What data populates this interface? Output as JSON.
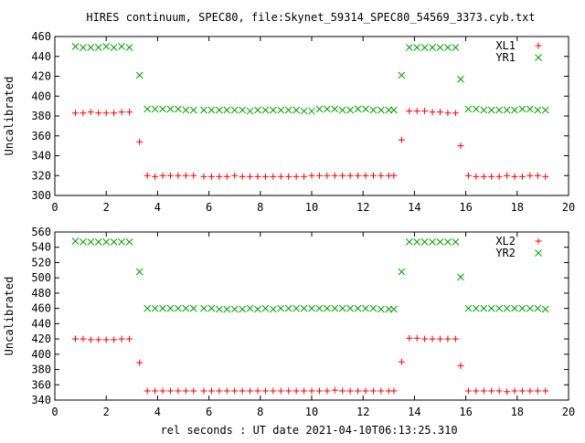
{
  "title": "HIRES continuum, SPEC80, file:Skynet_59314_SPEC80_54569_3373.cyb.txt",
  "xlabel": "rel seconds : UT date 2021-04-10T06:13:25.310",
  "colors": {
    "red": "#ff0000",
    "green": "#00a000",
    "axis": "#000000"
  },
  "chart_data": [
    {
      "type": "scatter",
      "ylabel": "Uncalibrated",
      "xlim": [
        0,
        20
      ],
      "ylim": [
        300,
        460
      ],
      "xticks": [
        0,
        2,
        4,
        6,
        8,
        10,
        12,
        14,
        16,
        18,
        20
      ],
      "yticks": [
        300,
        320,
        340,
        360,
        380,
        400,
        420,
        440,
        460
      ],
      "legend_position": "top-right",
      "series": [
        {
          "name": "XL1",
          "marker": "plus",
          "color": "#ff0000",
          "x": [
            0.8,
            1.1,
            1.4,
            1.7,
            2.0,
            2.3,
            2.6,
            2.9,
            3.3,
            3.6,
            3.9,
            4.2,
            4.5,
            4.8,
            5.1,
            5.4,
            5.8,
            6.1,
            6.4,
            6.7,
            7.0,
            7.3,
            7.6,
            7.9,
            8.2,
            8.5,
            8.8,
            9.1,
            9.4,
            9.7,
            10.0,
            10.3,
            10.6,
            10.9,
            11.2,
            11.5,
            11.8,
            12.1,
            12.4,
            12.7,
            13.0,
            13.2,
            13.5,
            13.8,
            14.1,
            14.4,
            14.7,
            15.0,
            15.3,
            15.6,
            15.8,
            16.1,
            16.4,
            16.7,
            17.0,
            17.3,
            17.6,
            17.9,
            18.2,
            18.5,
            18.8,
            19.1
          ],
          "y": [
            383,
            383,
            384,
            383,
            383,
            383,
            384,
            384,
            354,
            320,
            319,
            320,
            320,
            320,
            320,
            320,
            319,
            319,
            319,
            319,
            320,
            319,
            319,
            319,
            319,
            319,
            319,
            319,
            319,
            319,
            320,
            320,
            320,
            320,
            320,
            320,
            320,
            320,
            320,
            320,
            320,
            320,
            356,
            385,
            385,
            385,
            384,
            384,
            383,
            383,
            350,
            320,
            319,
            319,
            319,
            319,
            320,
            319,
            319,
            320,
            320,
            319
          ]
        },
        {
          "name": "YR1",
          "marker": "cross",
          "color": "#00a000",
          "x": [
            0.8,
            1.1,
            1.4,
            1.7,
            2.0,
            2.3,
            2.6,
            2.9,
            3.3,
            3.6,
            3.9,
            4.2,
            4.5,
            4.8,
            5.1,
            5.4,
            5.8,
            6.1,
            6.4,
            6.7,
            7.0,
            7.3,
            7.6,
            7.9,
            8.2,
            8.5,
            8.8,
            9.1,
            9.4,
            9.7,
            10.0,
            10.3,
            10.6,
            10.9,
            11.2,
            11.5,
            11.8,
            12.1,
            12.4,
            12.7,
            13.0,
            13.2,
            13.5,
            13.8,
            14.1,
            14.4,
            14.7,
            15.0,
            15.3,
            15.6,
            15.8,
            16.1,
            16.4,
            16.7,
            17.0,
            17.3,
            17.6,
            17.9,
            18.2,
            18.5,
            18.8,
            19.1
          ],
          "y": [
            450,
            449,
            449,
            449,
            450,
            449,
            450,
            449,
            421,
            387,
            387,
            387,
            387,
            387,
            386,
            386,
            386,
            386,
            386,
            386,
            386,
            386,
            385,
            386,
            386,
            386,
            386,
            386,
            386,
            385,
            385,
            387,
            387,
            387,
            386,
            386,
            387,
            387,
            386,
            386,
            386,
            386,
            421,
            449,
            449,
            449,
            449,
            449,
            449,
            449,
            417,
            387,
            387,
            386,
            386,
            386,
            386,
            386,
            387,
            387,
            386,
            386
          ]
        }
      ]
    },
    {
      "type": "scatter",
      "ylabel": "Uncalibrated",
      "xlim": [
        0,
        20
      ],
      "ylim": [
        340,
        560
      ],
      "xticks": [
        0,
        2,
        4,
        6,
        8,
        10,
        12,
        14,
        16,
        18,
        20
      ],
      "yticks": [
        340,
        360,
        380,
        400,
        420,
        440,
        460,
        480,
        500,
        520,
        540,
        560
      ],
      "legend_position": "top-right",
      "series": [
        {
          "name": "XL2",
          "marker": "plus",
          "color": "#ff0000",
          "x": [
            0.8,
            1.1,
            1.4,
            1.7,
            2.0,
            2.3,
            2.6,
            2.9,
            3.3,
            3.6,
            3.9,
            4.2,
            4.5,
            4.8,
            5.1,
            5.4,
            5.8,
            6.1,
            6.4,
            6.7,
            7.0,
            7.3,
            7.6,
            7.9,
            8.2,
            8.5,
            8.8,
            9.1,
            9.4,
            9.7,
            10.0,
            10.3,
            10.6,
            10.9,
            11.2,
            11.5,
            11.8,
            12.1,
            12.4,
            12.7,
            13.0,
            13.2,
            13.5,
            13.8,
            14.1,
            14.4,
            14.7,
            15.0,
            15.3,
            15.6,
            15.8,
            16.1,
            16.4,
            16.7,
            17.0,
            17.3,
            17.6,
            17.9,
            18.2,
            18.5,
            18.8,
            19.1
          ],
          "y": [
            420,
            420,
            419,
            419,
            419,
            419,
            420,
            420,
            389,
            352,
            352,
            352,
            352,
            352,
            352,
            352,
            352,
            352,
            352,
            352,
            352,
            352,
            352,
            352,
            352,
            352,
            352,
            352,
            352,
            352,
            352,
            352,
            352,
            353,
            352,
            352,
            352,
            352,
            352,
            352,
            352,
            352,
            390,
            421,
            421,
            420,
            420,
            420,
            420,
            420,
            385,
            352,
            352,
            352,
            352,
            352,
            351,
            352,
            352,
            352,
            352,
            352
          ]
        },
        {
          "name": "YR2",
          "marker": "cross",
          "color": "#00a000",
          "x": [
            0.8,
            1.1,
            1.4,
            1.7,
            2.0,
            2.3,
            2.6,
            2.9,
            3.3,
            3.6,
            3.9,
            4.2,
            4.5,
            4.8,
            5.1,
            5.4,
            5.8,
            6.1,
            6.4,
            6.7,
            7.0,
            7.3,
            7.6,
            7.9,
            8.2,
            8.5,
            8.8,
            9.1,
            9.4,
            9.7,
            10.0,
            10.3,
            10.6,
            10.9,
            11.2,
            11.5,
            11.8,
            12.1,
            12.4,
            12.7,
            13.0,
            13.2,
            13.5,
            13.8,
            14.1,
            14.4,
            14.7,
            15.0,
            15.3,
            15.6,
            15.8,
            16.1,
            16.4,
            16.7,
            17.0,
            17.3,
            17.6,
            17.9,
            18.2,
            18.5,
            18.8,
            19.1
          ],
          "y": [
            548,
            547,
            547,
            547,
            547,
            547,
            547,
            547,
            508,
            460,
            460,
            460,
            460,
            460,
            460,
            460,
            460,
            460,
            459,
            459,
            459,
            459,
            460,
            459,
            460,
            459,
            460,
            460,
            460,
            460,
            460,
            460,
            460,
            460,
            460,
            460,
            460,
            460,
            460,
            459,
            459,
            459,
            508,
            547,
            547,
            547,
            547,
            547,
            547,
            547,
            501,
            460,
            460,
            460,
            460,
            460,
            460,
            460,
            460,
            460,
            460,
            459
          ]
        }
      ]
    }
  ]
}
